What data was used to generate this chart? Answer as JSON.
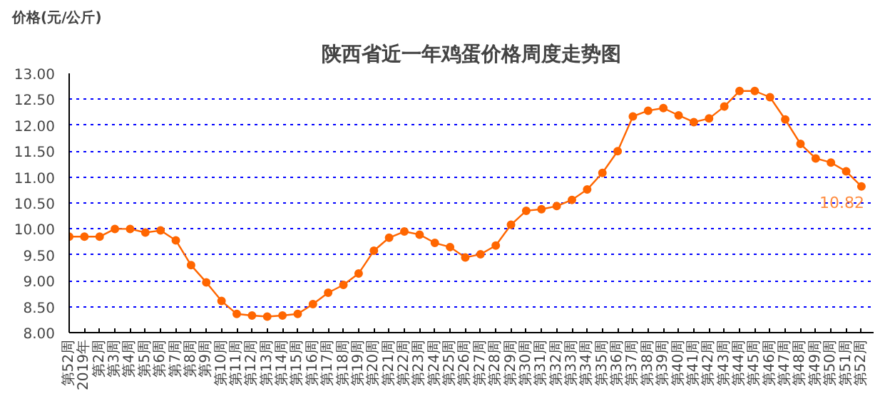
{
  "chart_data": {
    "type": "line",
    "title": "陕西省近一年鸡蛋价格周度走势图",
    "ylabel": "价格(元/公斤)",
    "categories": [
      "第52周",
      "2019年",
      "第2周",
      "第3周",
      "第4周",
      "第5周",
      "第6周",
      "第7周",
      "第8周",
      "第9周",
      "第10周",
      "第11周",
      "第12周",
      "第13周",
      "第14周",
      "第15周",
      "第16周",
      "第17周",
      "第18周",
      "第19周",
      "第20周",
      "第21周",
      "第22周",
      "第23周",
      "第24周",
      "第25周",
      "第26周",
      "第27周",
      "第28周",
      "第29周",
      "第30周",
      "第31周",
      "第32周",
      "第33周",
      "第34周",
      "第35周",
      "第36周",
      "第37周",
      "第38周",
      "第39周",
      "第40周",
      "第41周",
      "第42周",
      "第43周",
      "第44周",
      "第45周",
      "第46周",
      "第47周",
      "第48周",
      "第49周",
      "第50周",
      "第51周",
      "第52周"
    ],
    "series": [
      {
        "color": "#ff6600",
        "values": [
          9.85,
          9.85,
          9.85,
          10.0,
          10.0,
          9.93,
          9.97,
          9.78,
          9.3,
          8.97,
          8.61,
          8.36,
          8.33,
          8.31,
          8.33,
          8.36,
          8.55,
          8.77,
          8.92,
          9.14,
          9.58,
          9.83,
          9.95,
          9.89,
          9.73,
          9.65,
          9.45,
          9.51,
          9.68,
          10.08,
          10.35,
          10.38,
          10.44,
          10.56,
          10.76,
          11.08,
          11.5,
          12.17,
          12.28,
          12.33,
          12.19,
          12.06,
          12.13,
          12.36,
          12.66,
          12.66,
          12.54,
          12.11,
          11.64,
          11.36,
          11.28,
          11.11,
          10.82
        ],
        "value_labels": [
          null,
          null,
          null,
          null,
          null,
          null,
          null,
          null,
          null,
          null,
          null,
          null,
          null,
          null,
          null,
          null,
          null,
          null,
          null,
          null,
          null,
          null,
          null,
          null,
          null,
          null,
          null,
          null,
          null,
          null,
          null,
          null,
          null,
          null,
          null,
          null,
          null,
          null,
          null,
          null,
          null,
          null,
          null,
          null,
          null,
          null,
          null,
          null,
          null,
          null,
          null,
          null,
          "10.82"
        ]
      }
    ],
    "ylim": [
      8.0,
      13.0
    ],
    "yticks": [
      {
        "value": 8.0,
        "label": "8.00"
      },
      {
        "value": 8.5,
        "label": "8.50"
      },
      {
        "value": 9.0,
        "label": "9.00"
      },
      {
        "value": 9.5,
        "label": "9.50"
      },
      {
        "value": 10.0,
        "label": "10.00"
      },
      {
        "value": 10.5,
        "label": "10.50"
      },
      {
        "value": 11.0,
        "label": "11.00"
      },
      {
        "value": 11.5,
        "label": "11.50"
      },
      {
        "value": 12.0,
        "label": "12.00"
      },
      {
        "value": 12.5,
        "label": "12.50"
      },
      {
        "value": 13.0,
        "label": "13.00"
      }
    ],
    "grid": "y",
    "marker": "circle",
    "line_style": "solid"
  }
}
